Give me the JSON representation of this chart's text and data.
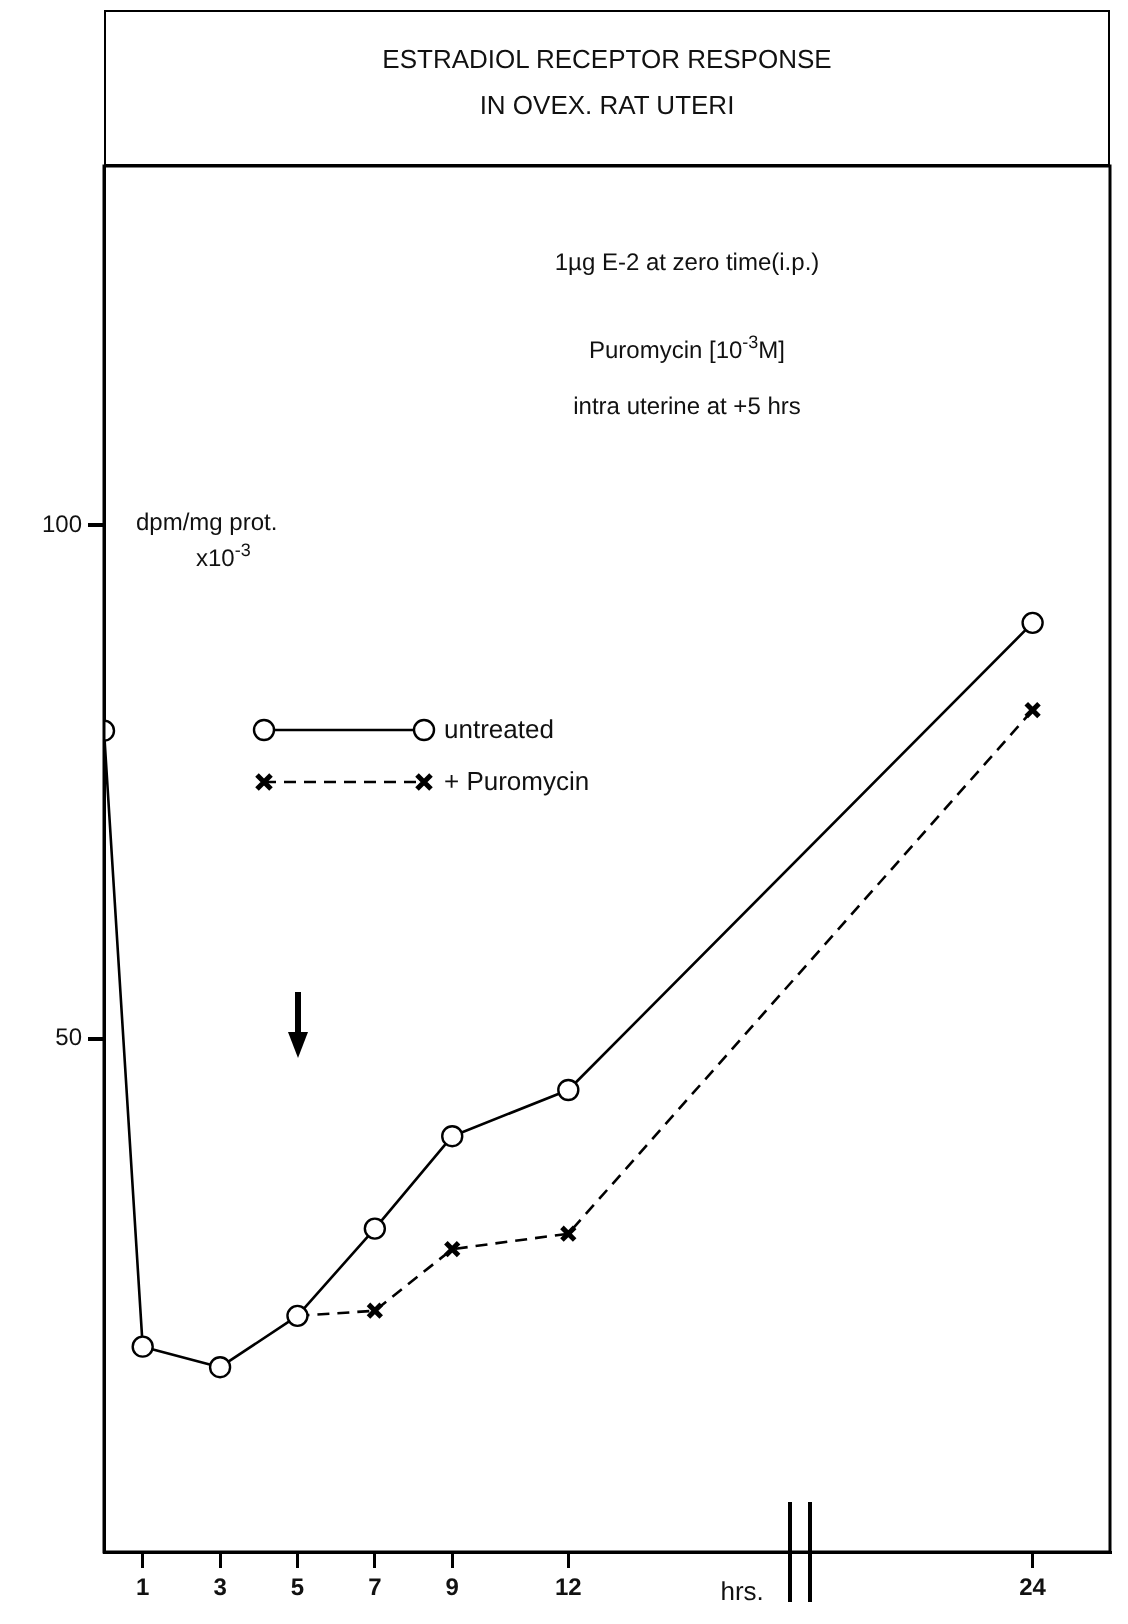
{
  "chart_data": {
    "type": "line",
    "title": "ESTRADIOL RECEPTOR RESPONSE",
    "subtitle": "IN OVEX. RAT UTERI",
    "ylabel": "dpm/mg prot.\nx10$^{-3}$",
    "xlabel": "hrs.",
    "annotations": [
      "1µg E-2 at zero time(i.p.)",
      "Puromycin [10$^{-3}$M]",
      "intra uterine at +5 hrs"
    ],
    "series": [
      {
        "name": "untreated",
        "color": "#000000",
        "marker": "circle",
        "line_style": "solid",
        "x": [
          0,
          1,
          3,
          5,
          7,
          9,
          12,
          24
        ],
        "values": [
          80,
          20,
          18,
          23,
          31.5,
          40.5,
          45,
          90.5
        ]
      },
      {
        "name": "+ Puromycin",
        "color": "#000000",
        "marker": "cross",
        "line_style": "dashed",
        "x": [
          5,
          7,
          9,
          12,
          24
        ],
        "values": [
          23,
          23.5,
          29.5,
          31,
          82
        ]
      }
    ],
    "xlim": [
      0,
      26
    ],
    "xticks": [
      1,
      3,
      5,
      7,
      9,
      12,
      24
    ],
    "ylim": [
      0,
      135
    ],
    "yticks": [
      50,
      100
    ],
    "grid": false,
    "legend": "left"
  }
}
